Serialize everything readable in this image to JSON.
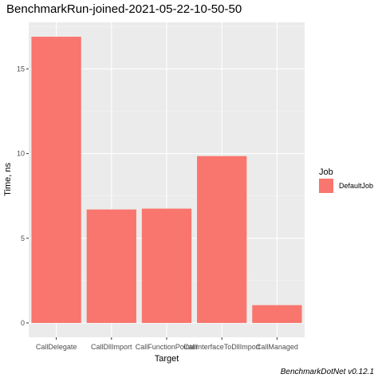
{
  "chart_data": {
    "type": "bar",
    "title": "BenchmarkRun-joined-2021-05-22-10-50-50",
    "xlabel": "Target",
    "ylabel": "Time, ns",
    "categories": [
      "CallDelegate",
      "CallDllImport",
      "CallFunctionPointer",
      "CallInterfaceToDllImport",
      "CallManaged"
    ],
    "series": [
      {
        "name": "DefaultJob",
        "values": [
          16.9,
          6.7,
          6.75,
          9.85,
          1.05
        ]
      }
    ],
    "yticks": [
      0,
      5,
      10,
      15
    ],
    "ylim": [
      -0.85,
      17.75
    ],
    "grid": true,
    "legend": {
      "title": "Job",
      "position": "right"
    },
    "caption": "BenchmarkDotNet v0.12.1",
    "colors": {
      "bar": "#F8766D",
      "panel": "#EBEBEB",
      "grid_major": "#FFFFFF",
      "grid_minor": "#F5F5F5"
    }
  }
}
